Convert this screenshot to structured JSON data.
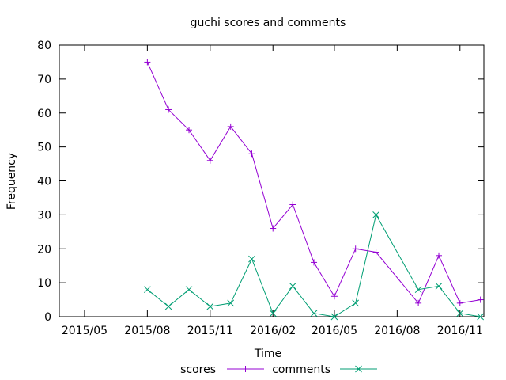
{
  "chart_data": {
    "type": "line",
    "title": "guchi scores and comments",
    "xlabel": "Time",
    "ylabel": "Frequency",
    "ylim": [
      0,
      80
    ],
    "y_ticks": [
      0,
      10,
      20,
      30,
      40,
      50,
      60,
      70,
      80
    ],
    "x_range": [
      "2015-03-25",
      "2016-12-06"
    ],
    "x_ticks": [
      {
        "date": "2015-05-01",
        "label": "2015/05"
      },
      {
        "date": "2015-08-01",
        "label": "2015/08"
      },
      {
        "date": "2015-11-01",
        "label": "2015/11"
      },
      {
        "date": "2016-02-01",
        "label": "2016/02"
      },
      {
        "date": "2016-05-01",
        "label": "2016/05"
      },
      {
        "date": "2016-08-01",
        "label": "2016/08"
      },
      {
        "date": "2016-11-01",
        "label": "2016/11"
      }
    ],
    "legend_position": "bottom-center",
    "grid": false,
    "series": [
      {
        "name": "scores",
        "color": "#9400d3",
        "marker": "plus",
        "points": [
          {
            "x": "2015-08-01",
            "y": 75
          },
          {
            "x": "2015-09-01",
            "y": 61
          },
          {
            "x": "2015-10-01",
            "y": 55
          },
          {
            "x": "2015-11-01",
            "y": 46
          },
          {
            "x": "2015-12-01",
            "y": 56
          },
          {
            "x": "2016-01-01",
            "y": 48
          },
          {
            "x": "2016-02-01",
            "y": 26
          },
          {
            "x": "2016-03-01",
            "y": 33
          },
          {
            "x": "2016-04-01",
            "y": 16
          },
          {
            "x": "2016-05-01",
            "y": 6
          },
          {
            "x": "2016-06-01",
            "y": 20
          },
          {
            "x": "2016-07-01",
            "y": 19
          },
          {
            "x": "2016-09-01",
            "y": 4
          },
          {
            "x": "2016-10-01",
            "y": 18
          },
          {
            "x": "2016-11-01",
            "y": 4
          },
          {
            "x": "2016-12-01",
            "y": 5
          }
        ]
      },
      {
        "name": "comments",
        "color": "#009e73",
        "marker": "cross",
        "points": [
          {
            "x": "2015-08-01",
            "y": 8
          },
          {
            "x": "2015-09-01",
            "y": 3
          },
          {
            "x": "2015-10-01",
            "y": 8
          },
          {
            "x": "2015-11-01",
            "y": 3
          },
          {
            "x": "2015-12-01",
            "y": 4
          },
          {
            "x": "2016-01-01",
            "y": 17
          },
          {
            "x": "2016-02-01",
            "y": 1
          },
          {
            "x": "2016-03-01",
            "y": 9
          },
          {
            "x": "2016-04-01",
            "y": 1
          },
          {
            "x": "2016-05-01",
            "y": 0
          },
          {
            "x": "2016-06-01",
            "y": 4
          },
          {
            "x": "2016-07-01",
            "y": 30
          },
          {
            "x": "2016-09-01",
            "y": 8
          },
          {
            "x": "2016-10-01",
            "y": 9
          },
          {
            "x": "2016-11-01",
            "y": 1
          },
          {
            "x": "2016-12-01",
            "y": 0
          }
        ]
      }
    ]
  }
}
